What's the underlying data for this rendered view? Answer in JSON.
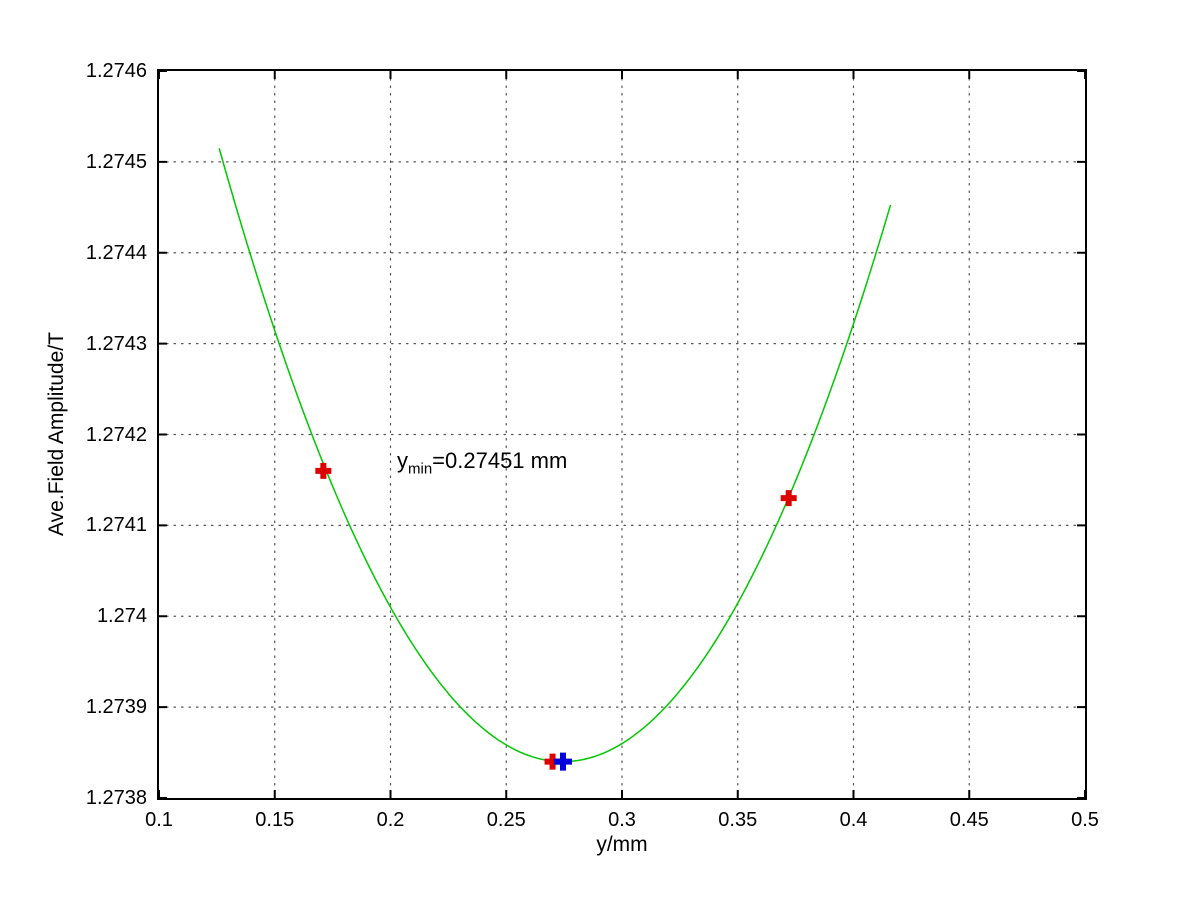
{
  "figure": {
    "background": "#ffffff",
    "axes_color": "#000000"
  },
  "chart_data": {
    "type": "line",
    "title": "",
    "xlabel": "y/mm",
    "ylabel": "Ave.Field Amplitude/T",
    "xlim": [
      0.1,
      0.5
    ],
    "ylim": [
      1.2738,
      1.2746
    ],
    "grid": {
      "on": true,
      "style": "dotted",
      "color": "#555555"
    },
    "legend": "none",
    "x_ticks": {
      "values": [
        0.1,
        0.15,
        0.2,
        0.25,
        0.3,
        0.35,
        0.4,
        0.45,
        0.5
      ],
      "labels": [
        "0.1",
        "0.15",
        "0.2",
        "0.25",
        "0.3",
        "0.35",
        "0.4",
        "0.45",
        "0.5"
      ]
    },
    "y_ticks": {
      "values": [
        1.2738,
        1.2739,
        1.274,
        1.2741,
        1.2742,
        1.2743,
        1.2744,
        1.2745,
        1.2746
      ],
      "labels": [
        "1.2738",
        "1.2739",
        "1.274",
        "1.2741",
        "1.2742",
        "1.2743",
        "1.2744",
        "1.2745",
        "1.2746"
      ]
    },
    "series": [
      {
        "name": "quadratic-fit-curve",
        "type": "line",
        "color": "#00c800",
        "line_width": 1.5,
        "fit": {
          "x_vertex": 0.27451,
          "y_vertex": 1.27384,
          "a": 0.0306
        },
        "x_start": 0.126,
        "x_end": 0.416
      },
      {
        "name": "measured-points",
        "type": "scatter",
        "marker": "plus",
        "color": "#dd0000",
        "marker_size": 8,
        "marker_stroke": 6,
        "points": [
          {
            "x": 0.171,
            "y": 1.27416
          },
          {
            "x": 0.27,
            "y": 1.27384
          },
          {
            "x": 0.372,
            "y": 1.27413
          }
        ]
      },
      {
        "name": "fitted-minimum-point",
        "type": "scatter",
        "marker": "plus",
        "color": "#0000dd",
        "marker_size": 9,
        "marker_stroke": 6,
        "points": [
          {
            "x": 0.27451,
            "y": 1.27384
          }
        ]
      }
    ],
    "annotation": {
      "prefix": "y",
      "subscript": "min",
      "suffix": "=0.27451 mm"
    }
  }
}
